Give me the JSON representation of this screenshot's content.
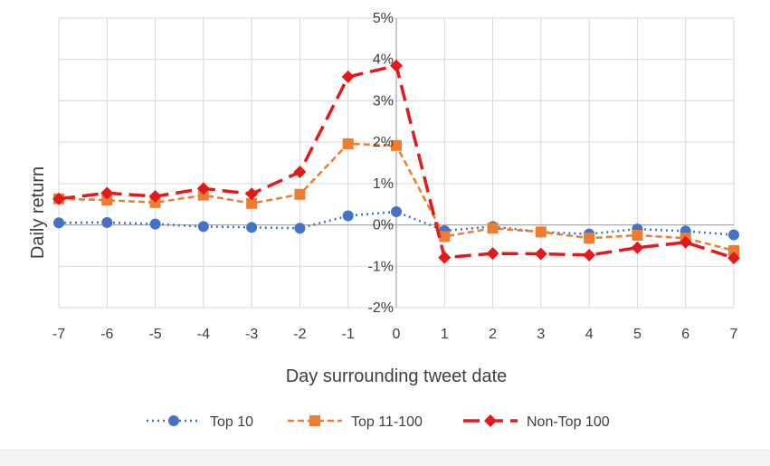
{
  "chart_data": {
    "type": "line",
    "title": "",
    "xlabel": "Day surrounding tweet date",
    "ylabel": "Daily return",
    "x": [
      -7,
      -6,
      -5,
      -4,
      -3,
      -2,
      -1,
      0,
      1,
      2,
      3,
      4,
      5,
      6,
      7
    ],
    "x_tick_labels": [
      "-7",
      "-6",
      "-5",
      "-4",
      "-3",
      "-2",
      "-1",
      "0",
      "1",
      "2",
      "3",
      "4",
      "5",
      "6",
      "7"
    ],
    "ylim": [
      -0.02,
      0.05
    ],
    "y_ticks": [
      -0.02,
      -0.01,
      0,
      0.01,
      0.02,
      0.03,
      0.04,
      0.05
    ],
    "y_tick_labels": [
      "-2%",
      "-1%",
      "0%",
      "1%",
      "2%",
      "3%",
      "4%",
      "5%"
    ],
    "grid": true,
    "legend_position": "bottom",
    "series": [
      {
        "name": "Top 10",
        "color": "#4472c4",
        "line_style": "dotted",
        "marker": "circle",
        "values": [
          0.0005,
          0.0006,
          0.0002,
          -0.0004,
          -0.0006,
          -0.0008,
          0.0022,
          0.0032,
          -0.0014,
          -0.0004,
          -0.0017,
          -0.0022,
          -0.001,
          -0.0015,
          -0.0024
        ]
      },
      {
        "name": "Top 11-100",
        "color": "#ed7d31",
        "line_style": "dashed",
        "marker": "square",
        "values": [
          0.0063,
          0.006,
          0.0054,
          0.0072,
          0.0052,
          0.0074,
          0.0196,
          0.0192,
          -0.0028,
          -0.0008,
          -0.0017,
          -0.0032,
          -0.0025,
          -0.0032,
          -0.0062
        ]
      },
      {
        "name": "Non-Top 100",
        "color": "#e31a1c",
        "line_style": "long-dash",
        "marker": "diamond",
        "values": [
          0.0063,
          0.0077,
          0.0069,
          0.0088,
          0.0075,
          0.0128,
          0.0358,
          0.0385,
          -0.0079,
          -0.0069,
          -0.007,
          -0.0073,
          -0.0055,
          -0.0042,
          -0.008
        ]
      }
    ]
  }
}
